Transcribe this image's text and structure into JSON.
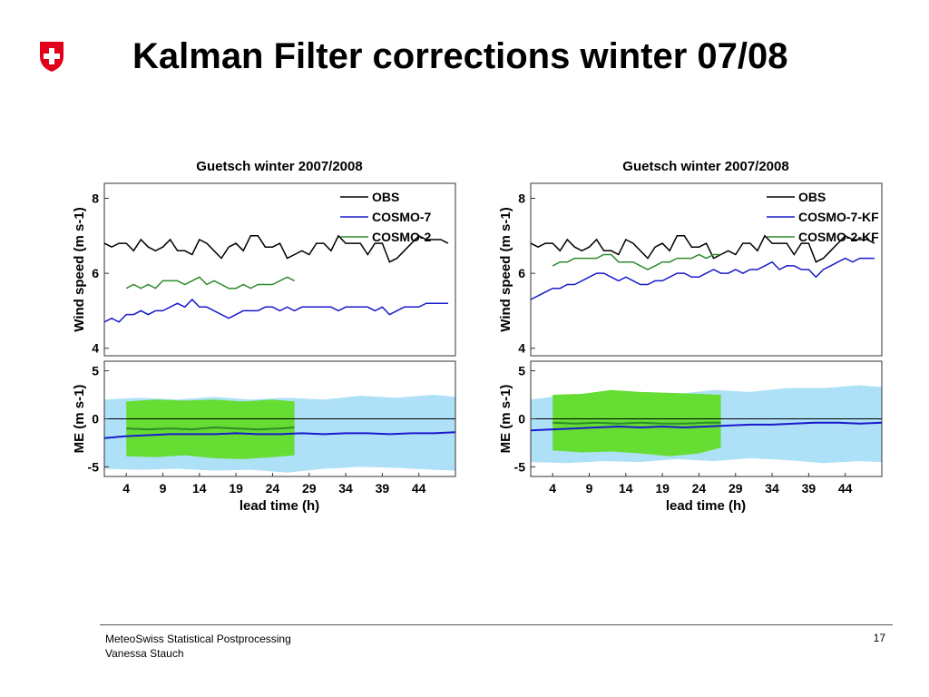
{
  "slide": {
    "title": "Kalman Filter corrections winter 07/08",
    "footer_line1": "MeteoSwiss Statistical Postprocessing",
    "footer_line2": "Vanessa Stauch",
    "page_number": "17"
  },
  "colors": {
    "obs": "#000000",
    "cosmo7": "#1a1acc",
    "cosmo2": "#2e8b2e",
    "band_cosmo7": "#aee0f7",
    "band_cosmo2": "#66dd33",
    "logo_red": "#e3001b"
  },
  "chart_data": [
    {
      "type": "line",
      "title": "Guetsch winter 2007/2008",
      "xlabel": "lead time (h)",
      "xticks": [
        "4",
        "9",
        "14",
        "19",
        "24",
        "29",
        "34",
        "39",
        "44"
      ],
      "xlim": [
        1,
        49
      ],
      "top_panel": {
        "ylabel": "Wind speed (m s-1)",
        "ylim": [
          3.8,
          8.4
        ],
        "yticks": [
          "4",
          "6",
          "8"
        ],
        "series": [
          {
            "name": "OBS",
            "x": [
              1,
              2,
              3,
              4,
              5,
              6,
              7,
              8,
              9,
              10,
              11,
              12,
              13,
              14,
              15,
              16,
              17,
              18,
              19,
              20,
              21,
              22,
              23,
              24,
              25,
              26,
              27,
              28,
              29,
              30,
              31,
              32,
              33,
              34,
              35,
              36,
              37,
              38,
              39,
              40,
              41,
              42,
              43,
              44,
              45,
              46,
              47,
              48
            ],
            "values": [
              6.8,
              6.7,
              6.8,
              6.8,
              6.6,
              6.9,
              6.7,
              6.6,
              6.7,
              6.9,
              6.6,
              6.6,
              6.5,
              6.9,
              6.8,
              6.6,
              6.4,
              6.7,
              6.8,
              6.6,
              7.0,
              7.0,
              6.7,
              6.7,
              6.8,
              6.4,
              6.5,
              6.6,
              6.5,
              6.8,
              6.8,
              6.6,
              7.0,
              6.8,
              6.8,
              6.8,
              6.5,
              6.8,
              6.8,
              6.3,
              6.4,
              6.6,
              6.8,
              7.0,
              6.9,
              6.9,
              6.9,
              6.8
            ]
          },
          {
            "name": "COSMO-7",
            "x": [
              1,
              2,
              3,
              4,
              5,
              6,
              7,
              8,
              9,
              10,
              11,
              12,
              13,
              14,
              15,
              16,
              17,
              18,
              19,
              20,
              21,
              22,
              23,
              24,
              25,
              26,
              27,
              28,
              29,
              30,
              31,
              32,
              33,
              34,
              35,
              36,
              37,
              38,
              39,
              40,
              41,
              42,
              43,
              44,
              45,
              46,
              47,
              48
            ],
            "values": [
              4.7,
              4.8,
              4.7,
              4.9,
              4.9,
              5.0,
              4.9,
              5.0,
              5.0,
              5.1,
              5.2,
              5.1,
              5.3,
              5.1,
              5.1,
              5.0,
              4.9,
              4.8,
              4.9,
              5.0,
              5.0,
              5.0,
              5.1,
              5.1,
              5.0,
              5.1,
              5.0,
              5.1,
              5.1,
              5.1,
              5.1,
              5.1,
              5.0,
              5.1,
              5.1,
              5.1,
              5.1,
              5.0,
              5.1,
              4.9,
              5.0,
              5.1,
              5.1,
              5.1,
              5.2,
              5.2,
              5.2,
              5.2
            ]
          },
          {
            "name": "COSMO-2",
            "x": [
              4,
              5,
              6,
              7,
              8,
              9,
              10,
              11,
              12,
              13,
              14,
              15,
              16,
              17,
              18,
              19,
              20,
              21,
              22,
              23,
              24,
              25,
              26,
              27
            ],
            "values": [
              5.6,
              5.7,
              5.6,
              5.7,
              5.6,
              5.8,
              5.8,
              5.8,
              5.7,
              5.8,
              5.9,
              5.7,
              5.8,
              5.7,
              5.6,
              5.6,
              5.7,
              5.6,
              5.7,
              5.7,
              5.7,
              5.8,
              5.9,
              5.8
            ]
          }
        ]
      },
      "bottom_panel": {
        "ylabel": "ME (m s-1)",
        "ylim": [
          -6,
          6
        ],
        "yticks": [
          "5",
          "0",
          "-5"
        ],
        "band_cosmo7": {
          "x": [
            1,
            6,
            11,
            16,
            21,
            26,
            31,
            36,
            41,
            46,
            49
          ],
          "upper": [
            2.0,
            2.2,
            2.0,
            2.3,
            2.0,
            2.2,
            2.0,
            2.4,
            2.2,
            2.5,
            2.3
          ],
          "lower": [
            -5.2,
            -5.3,
            -5.2,
            -5.4,
            -5.3,
            -5.6,
            -5.2,
            -5.0,
            -5.1,
            -5.3,
            -5.4
          ]
        },
        "band_cosmo2": {
          "x": [
            4,
            8,
            12,
            16,
            20,
            24,
            27
          ],
          "upper": [
            1.8,
            2.0,
            1.9,
            2.0,
            1.8,
            2.0,
            1.8
          ],
          "lower": [
            -3.9,
            -4.0,
            -3.8,
            -4.1,
            -4.2,
            -4.0,
            -3.8
          ]
        },
        "series": [
          {
            "name": "COSMO-7",
            "x": [
              1,
              4,
              7,
              10,
              13,
              16,
              19,
              22,
              25,
              28,
              31,
              34,
              37,
              40,
              43,
              46,
              49
            ],
            "values": [
              -2.0,
              -1.8,
              -1.7,
              -1.6,
              -1.6,
              -1.6,
              -1.5,
              -1.6,
              -1.6,
              -1.5,
              -1.6,
              -1.5,
              -1.5,
              -1.6,
              -1.5,
              -1.5,
              -1.4
            ]
          },
          {
            "name": "COSMO-2",
            "x": [
              4,
              7,
              10,
              13,
              16,
              19,
              22,
              25,
              27
            ],
            "values": [
              -1.0,
              -1.1,
              -1.0,
              -1.1,
              -0.9,
              -1.0,
              -1.1,
              -1.0,
              -0.9
            ]
          }
        ]
      }
    },
    {
      "type": "line",
      "title": "Guetsch winter 2007/2008",
      "xlabel": "lead time (h)",
      "xticks": [
        "4",
        "9",
        "14",
        "19",
        "24",
        "29",
        "34",
        "39",
        "44"
      ],
      "xlim": [
        1,
        49
      ],
      "top_panel": {
        "ylabel": "Wind speed (m s-1)",
        "ylim": [
          3.8,
          8.4
        ],
        "yticks": [
          "4",
          "6",
          "8"
        ],
        "series": [
          {
            "name": "OBS",
            "x": [
              1,
              2,
              3,
              4,
              5,
              6,
              7,
              8,
              9,
              10,
              11,
              12,
              13,
              14,
              15,
              16,
              17,
              18,
              19,
              20,
              21,
              22,
              23,
              24,
              25,
              26,
              27,
              28,
              29,
              30,
              31,
              32,
              33,
              34,
              35,
              36,
              37,
              38,
              39,
              40,
              41,
              42,
              43,
              44,
              45,
              46,
              47,
              48
            ],
            "values": [
              6.8,
              6.7,
              6.8,
              6.8,
              6.6,
              6.9,
              6.7,
              6.6,
              6.7,
              6.9,
              6.6,
              6.6,
              6.5,
              6.9,
              6.8,
              6.6,
              6.4,
              6.7,
              6.8,
              6.6,
              7.0,
              7.0,
              6.7,
              6.7,
              6.8,
              6.4,
              6.5,
              6.6,
              6.5,
              6.8,
              6.8,
              6.6,
              7.0,
              6.8,
              6.8,
              6.8,
              6.5,
              6.8,
              6.8,
              6.3,
              6.4,
              6.6,
              6.8,
              7.0,
              6.9,
              6.9,
              6.9,
              6.8
            ]
          },
          {
            "name": "COSMO-7-KF",
            "x": [
              1,
              2,
              3,
              4,
              5,
              6,
              7,
              8,
              9,
              10,
              11,
              12,
              13,
              14,
              15,
              16,
              17,
              18,
              19,
              20,
              21,
              22,
              23,
              24,
              25,
              26,
              27,
              28,
              29,
              30,
              31,
              32,
              33,
              34,
              35,
              36,
              37,
              38,
              39,
              40,
              41,
              42,
              43,
              44,
              45,
              46,
              47,
              48
            ],
            "values": [
              5.3,
              5.4,
              5.5,
              5.6,
              5.6,
              5.7,
              5.7,
              5.8,
              5.9,
              6.0,
              6.0,
              5.9,
              5.8,
              5.9,
              5.8,
              5.7,
              5.7,
              5.8,
              5.8,
              5.9,
              6.0,
              6.0,
              5.9,
              5.9,
              6.0,
              6.1,
              6.0,
              6.0,
              6.1,
              6.0,
              6.1,
              6.1,
              6.2,
              6.3,
              6.1,
              6.2,
              6.2,
              6.1,
              6.1,
              5.9,
              6.1,
              6.2,
              6.3,
              6.4,
              6.3,
              6.4,
              6.4,
              6.4
            ]
          },
          {
            "name": "COSMO-2-KF",
            "x": [
              4,
              5,
              6,
              7,
              8,
              9,
              10,
              11,
              12,
              13,
              14,
              15,
              16,
              17,
              18,
              19,
              20,
              21,
              22,
              23,
              24,
              25,
              26,
              27
            ],
            "values": [
              6.2,
              6.3,
              6.3,
              6.4,
              6.4,
              6.4,
              6.4,
              6.5,
              6.5,
              6.3,
              6.3,
              6.3,
              6.2,
              6.1,
              6.2,
              6.3,
              6.3,
              6.4,
              6.4,
              6.4,
              6.5,
              6.4,
              6.5,
              6.5
            ]
          }
        ]
      },
      "bottom_panel": {
        "ylabel": "ME (m s-1)",
        "ylim": [
          -6,
          6
        ],
        "yticks": [
          "5",
          "0",
          "-5"
        ],
        "band_cosmo7": {
          "x": [
            1,
            6,
            11,
            16,
            21,
            26,
            31,
            36,
            41,
            46,
            49
          ],
          "upper": [
            2.0,
            2.5,
            2.4,
            2.8,
            2.6,
            3.0,
            2.8,
            3.2,
            3.2,
            3.5,
            3.3
          ],
          "lower": [
            -4.5,
            -4.6,
            -4.4,
            -4.5,
            -4.2,
            -4.4,
            -4.1,
            -4.3,
            -4.6,
            -4.4,
            -4.5
          ]
        },
        "band_cosmo2": {
          "x": [
            4,
            8,
            12,
            16,
            20,
            24,
            27
          ],
          "upper": [
            2.5,
            2.6,
            3.0,
            2.8,
            2.7,
            2.6,
            2.5
          ],
          "lower": [
            -3.3,
            -3.5,
            -3.4,
            -3.6,
            -3.9,
            -3.6,
            -3.0
          ]
        },
        "series": [
          {
            "name": "COSMO-7-KF",
            "x": [
              1,
              4,
              7,
              10,
              13,
              16,
              19,
              22,
              25,
              28,
              31,
              34,
              37,
              40,
              43,
              46,
              49
            ],
            "values": [
              -1.2,
              -1.1,
              -1.0,
              -0.9,
              -0.8,
              -0.9,
              -0.8,
              -0.9,
              -0.8,
              -0.7,
              -0.6,
              -0.6,
              -0.5,
              -0.4,
              -0.4,
              -0.5,
              -0.4
            ]
          },
          {
            "name": "COSMO-2-KF",
            "x": [
              4,
              7,
              10,
              13,
              16,
              19,
              22,
              25,
              27
            ],
            "values": [
              -0.4,
              -0.5,
              -0.4,
              -0.5,
              -0.4,
              -0.5,
              -0.5,
              -0.4,
              -0.4
            ]
          }
        ]
      }
    }
  ]
}
